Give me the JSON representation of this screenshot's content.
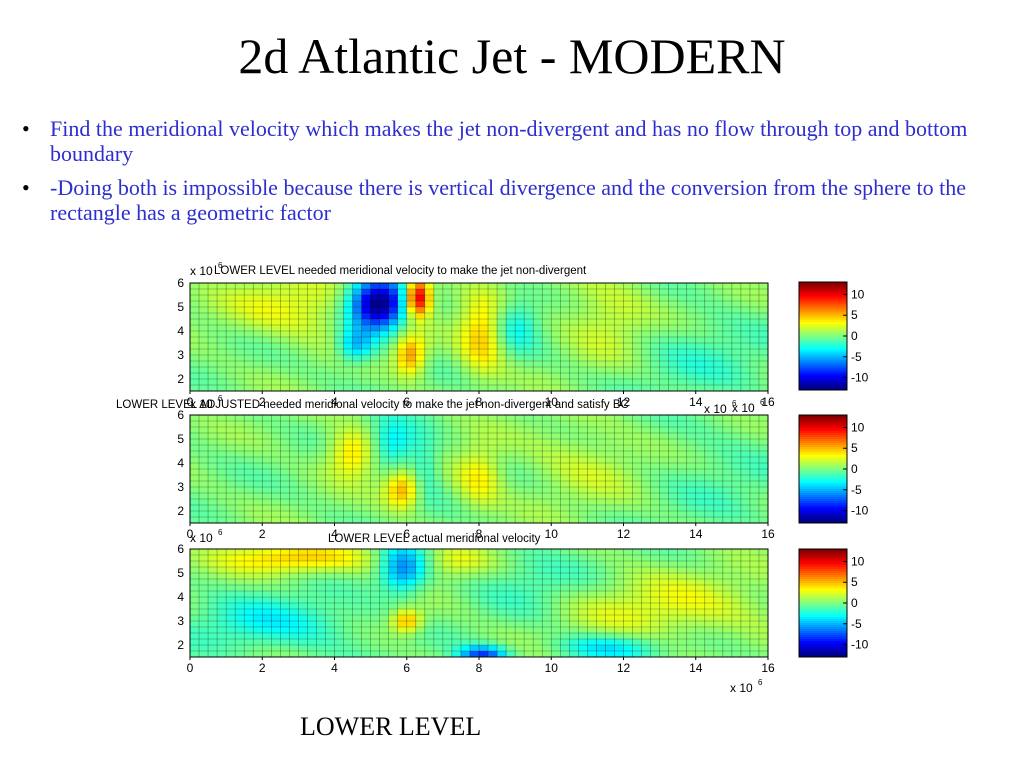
{
  "slide": {
    "title": "2d Atlantic Jet - MODERN",
    "bullets": [
      "Find the meridional velocity which makes the jet non-divergent and has no flow through top and bottom boundary",
      "-Doing both is impossible because there is vertical divergence and the conversion from the sphere to the rectangle has a geometric factor"
    ],
    "bullet_symbol": "•",
    "caption": "LOWER LEVEL"
  },
  "chart_data": [
    {
      "type": "heatmap",
      "title": "LOWER LEVEL needed meridional velocity to make the jet non-divergent",
      "x_ticks": [
        "0",
        "2",
        "4",
        "6",
        "8",
        "10",
        "12",
        "14",
        "16"
      ],
      "y_ticks": [
        "2",
        "3",
        "4",
        "5",
        "6"
      ],
      "x_exponent_label": "x 10",
      "x_exponent_power": "6",
      "y_exponent_label": "x 10",
      "y_exponent_power": "6",
      "xlim": [
        0,
        16
      ],
      "ylim": [
        1.5,
        6
      ],
      "grid": true,
      "colormap": "jet",
      "colorbar": {
        "ticks": [
          "10",
          "5",
          "0",
          "-5",
          "-10"
        ],
        "range": [
          -13,
          13
        ]
      },
      "features": [
        {
          "x": 5.2,
          "y": 5.1,
          "sx": 0.55,
          "sy": 0.75,
          "amp": -14
        },
        {
          "x": 4.6,
          "y": 3.4,
          "sx": 0.35,
          "sy": 0.5,
          "amp": -5
        },
        {
          "x": 6.3,
          "y": 5.4,
          "sx": 0.25,
          "sy": 0.55,
          "amp": 12
        },
        {
          "x": 6.1,
          "y": 3.0,
          "sx": 0.3,
          "sy": 0.6,
          "amp": 6
        },
        {
          "x": 8.1,
          "y": 3.8,
          "sx": 0.45,
          "sy": 1.1,
          "amp": 5
        },
        {
          "x": 9.0,
          "y": 4.3,
          "sx": 0.45,
          "sy": 0.8,
          "amp": -3
        },
        {
          "x": 3.0,
          "y": 5.0,
          "sx": 1.4,
          "sy": 0.9,
          "amp": 3
        },
        {
          "x": 11.6,
          "y": 4.5,
          "sx": 0.9,
          "sy": 1.2,
          "amp": 2.5
        },
        {
          "x": 14.0,
          "y": 3.0,
          "sx": 1.5,
          "sy": 1.2,
          "amp": -1.5
        }
      ]
    },
    {
      "type": "heatmap",
      "title": "LOWER LEVEL ADJUSTED needed meridional velocity to make the jet non-divergent and satisfy BC",
      "x_ticks": [
        "0",
        "2",
        "4",
        "6",
        "8",
        "10",
        "12",
        "14",
        "16"
      ],
      "y_ticks": [
        "2",
        "3",
        "4",
        "5",
        "6"
      ],
      "x_exponent_label": "x 10",
      "x_exponent_power": "6",
      "y_exponent_label": "x 10",
      "y_exponent_power": "6",
      "xlim": [
        0,
        16
      ],
      "ylim": [
        1.5,
        6
      ],
      "grid": true,
      "colormap": "jet",
      "colorbar": {
        "ticks": [
          "10",
          "5",
          "0",
          "-5",
          "-10"
        ],
        "range": [
          -13,
          13
        ]
      },
      "features": [
        {
          "x": 4.5,
          "y": 4.4,
          "sx": 0.5,
          "sy": 0.7,
          "amp": 4.5
        },
        {
          "x": 5.9,
          "y": 2.9,
          "sx": 0.35,
          "sy": 0.55,
          "amp": 5.5
        },
        {
          "x": 5.6,
          "y": 4.8,
          "sx": 0.45,
          "sy": 0.7,
          "amp": -4
        },
        {
          "x": 6.5,
          "y": 3.8,
          "sx": 0.3,
          "sy": 0.9,
          "amp": -2.5
        },
        {
          "x": 8.0,
          "y": 3.4,
          "sx": 0.45,
          "sy": 0.9,
          "amp": 3.5
        },
        {
          "x": 11.0,
          "y": 4.0,
          "sx": 1.2,
          "sy": 1.2,
          "amp": 1.8
        },
        {
          "x": 14.5,
          "y": 3.5,
          "sx": 1.5,
          "sy": 1.5,
          "amp": -1.0
        }
      ]
    },
    {
      "type": "heatmap",
      "title": "LOWER LEVEL actual meridional velocity",
      "x_ticks": [
        "0",
        "2",
        "4",
        "6",
        "8",
        "10",
        "12",
        "14",
        "16"
      ],
      "y_ticks": [
        "2",
        "3",
        "4",
        "5",
        "6"
      ],
      "x_exponent_label": "x 10",
      "x_exponent_power": "6",
      "y_exponent_label": "x 10",
      "y_exponent_power": "6",
      "xlim": [
        0,
        16
      ],
      "ylim": [
        1.5,
        6
      ],
      "grid": true,
      "colormap": "jet",
      "colorbar": {
        "ticks": [
          "10",
          "5",
          "0",
          "-5",
          "-10"
        ],
        "range": [
          -13,
          13
        ]
      },
      "features": [
        {
          "x": 3.0,
          "y": 5.6,
          "sx": 1.5,
          "sy": 0.45,
          "amp": 4.5
        },
        {
          "x": 5.9,
          "y": 5.2,
          "sx": 0.45,
          "sy": 0.7,
          "amp": -6.5
        },
        {
          "x": 6.0,
          "y": 3.0,
          "sx": 0.3,
          "sy": 0.35,
          "amp": 5.5
        },
        {
          "x": 2.4,
          "y": 2.9,
          "sx": 1.6,
          "sy": 0.8,
          "amp": -3.0
        },
        {
          "x": 8.1,
          "y": 1.6,
          "sx": 0.45,
          "sy": 0.25,
          "amp": -8
        },
        {
          "x": 11.5,
          "y": 1.9,
          "sx": 1.0,
          "sy": 0.4,
          "amp": -4
        },
        {
          "x": 13.0,
          "y": 3.6,
          "sx": 2.4,
          "sy": 1.0,
          "amp": 2.5
        },
        {
          "x": 9.5,
          "y": 4.5,
          "sx": 1.2,
          "sy": 1.0,
          "amp": -2.0
        },
        {
          "x": 7.4,
          "y": 5.5,
          "sx": 0.7,
          "sy": 0.5,
          "amp": 2.5
        }
      ]
    }
  ]
}
